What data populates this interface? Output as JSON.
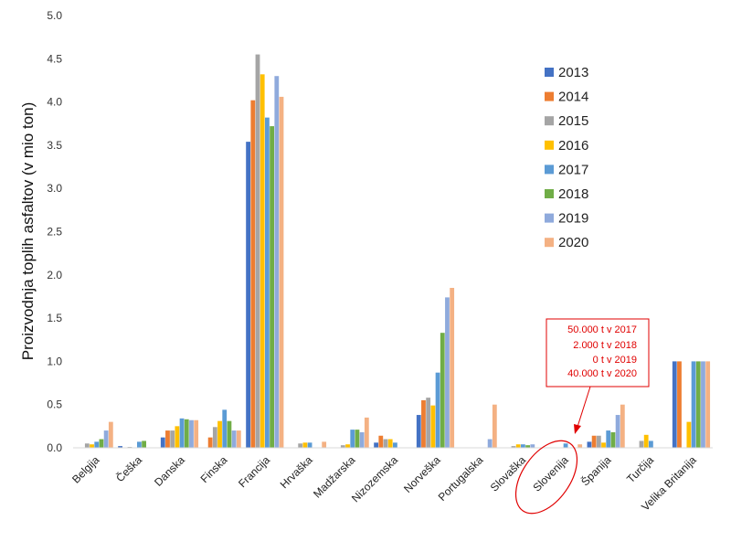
{
  "chart_data": {
    "type": "bar",
    "title": "",
    "xlabel": "",
    "ylabel": "Proizvodnja toplih asfaltov (v mio ton)",
    "ylim": [
      0,
      5
    ],
    "yticks": [
      "0.0",
      "0.5",
      "1.0",
      "1.5",
      "2.0",
      "2.5",
      "3.0",
      "3.5",
      "4.0",
      "4.5",
      "5.0"
    ],
    "grid": false,
    "legend_position": "top-right",
    "categories": [
      "Belgija",
      "Češka",
      "Danska",
      "Finska",
      "Francija",
      "Hrvaška",
      "Madžarska",
      "Nizozemska",
      "Norveška",
      "Portugalska",
      "Slovaška",
      "Slovenija",
      "Španija",
      "Turčija",
      "Velika Britanija"
    ],
    "series": [
      {
        "name": "2013",
        "color": "#4472C4",
        "values": [
          0,
          0.02,
          0.12,
          0,
          3.54,
          0,
          0,
          0.06,
          0.38,
          0,
          0,
          0,
          0.07,
          0,
          1.0
        ]
      },
      {
        "name": "2014",
        "color": "#ED7D31",
        "values": [
          0,
          0,
          0.2,
          0.12,
          4.02,
          0,
          0,
          0.14,
          0.55,
          0,
          0,
          0,
          0.14,
          0,
          1.0
        ]
      },
      {
        "name": "2015",
        "color": "#A5A5A5",
        "values": [
          0.05,
          0.01,
          0.2,
          0.24,
          4.55,
          0.05,
          0.03,
          0.1,
          0.58,
          0,
          0.02,
          0,
          0.14,
          0.08,
          0
        ]
      },
      {
        "name": "2016",
        "color": "#FFC000",
        "values": [
          0.04,
          0,
          0.25,
          0.31,
          4.32,
          0.06,
          0.04,
          0.1,
          0.49,
          0,
          0.04,
          0,
          0.06,
          0.15,
          0.3
        ]
      },
      {
        "name": "2017",
        "color": "#5B9BD5",
        "values": [
          0.07,
          0.07,
          0.34,
          0.44,
          3.82,
          0.06,
          0.21,
          0.06,
          0.87,
          0,
          0.04,
          0.05,
          0.2,
          0.08,
          1.0
        ]
      },
      {
        "name": "2018",
        "color": "#70AD47",
        "values": [
          0.1,
          0.08,
          0.33,
          0.31,
          3.72,
          0,
          0.21,
          0,
          1.33,
          0,
          0.03,
          0.002,
          0.18,
          0,
          1.0
        ]
      },
      {
        "name": "2019",
        "color": "#8FAADC",
        "values": [
          0.2,
          0,
          0.32,
          0.2,
          4.3,
          0,
          0.18,
          0,
          1.74,
          0.1,
          0.04,
          0,
          0.38,
          0,
          1.0
        ]
      },
      {
        "name": "2020",
        "color": "#F4B183",
        "values": [
          0.3,
          0,
          0.32,
          0.2,
          4.06,
          0.07,
          0.35,
          0,
          1.85,
          0.5,
          0,
          0.04,
          0.5,
          0,
          1.0
        ]
      }
    ],
    "annotation": {
      "lines": [
        "50.000 t v 2017",
        "2.000 t v 2018",
        "0 t v 2019",
        "40.000 t v 2020"
      ],
      "color": "#e00000",
      "target_category": "Slovenija"
    }
  }
}
